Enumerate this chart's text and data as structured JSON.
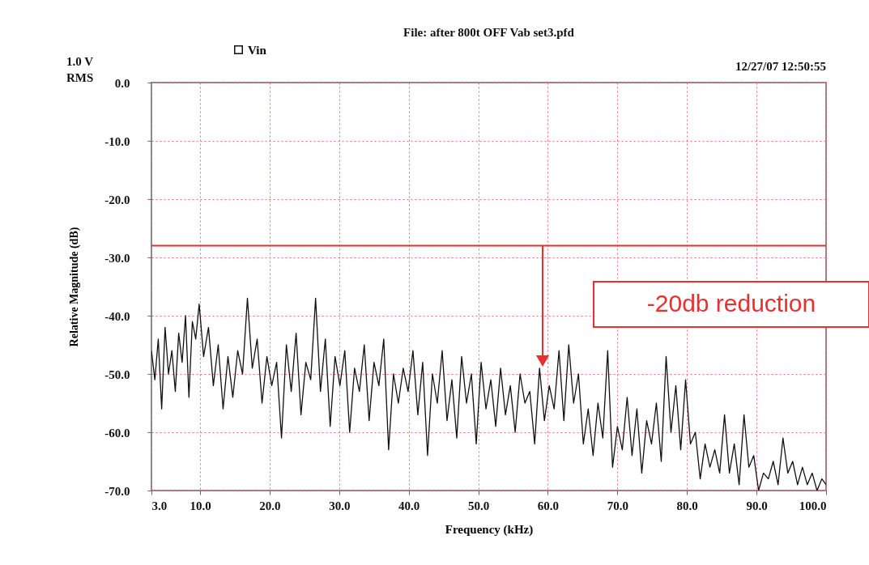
{
  "chart_data": {
    "type": "line",
    "title": "File: after 800t OFF Vab set3.pfd",
    "xlabel": "Frequency (kHz)",
    "ylabel": "Relative Magnitude (dB)",
    "xlim": [
      3,
      100
    ],
    "xticks": [
      {
        "value": 3,
        "label": "3.0"
      },
      {
        "value": 10,
        "label": "10.0"
      },
      {
        "value": 20,
        "label": "20.0"
      },
      {
        "value": 30,
        "label": "30.0"
      },
      {
        "value": 40,
        "label": "40.0"
      },
      {
        "value": 50,
        "label": "50.0"
      },
      {
        "value": 60,
        "label": "60.0"
      },
      {
        "value": 70,
        "label": "70.0"
      },
      {
        "value": 80,
        "label": "80.0"
      },
      {
        "value": 90,
        "label": "90.0"
      },
      {
        "value": 100,
        "label": "100.0"
      }
    ],
    "ylim": [
      -70,
      0
    ],
    "yticks": [
      {
        "value": 0,
        "label": "0.0"
      },
      {
        "value": -10,
        "label": "-10.0"
      },
      {
        "value": -20,
        "label": "-20.0"
      },
      {
        "value": -30,
        "label": "-30.0"
      },
      {
        "value": -40,
        "label": "-40.0"
      },
      {
        "value": -50,
        "label": "-50.0"
      },
      {
        "value": -60,
        "label": "-60.0"
      },
      {
        "value": -70,
        "label": "-70.0"
      }
    ],
    "grid": true,
    "legend": "top left",
    "line_style": "solid",
    "x": [
      3,
      3.49,
      3.98,
      4.47,
      4.96,
      5.45,
      5.94,
      6.43,
      6.92,
      7.41,
      7.9,
      8.39,
      8.88,
      9.37,
      9.86,
      10.5,
      11.2,
      11.9,
      12.6,
      13.3,
      14,
      14.7,
      15.4,
      16.1,
      16.8,
      17.5,
      18.2,
      18.9,
      19.6,
      20.3,
      21,
      21.7,
      22.4,
      23.1,
      23.8,
      24.5,
      25.2,
      25.9,
      26.6,
      27.3,
      28,
      28.7,
      29.4,
      30.1,
      30.8,
      31.5,
      32.2,
      32.9,
      33.6,
      34.3,
      35,
      35.7,
      36.4,
      37.1,
      37.8,
      38.5,
      39.2,
      39.9,
      40.6,
      41.3,
      42,
      42.7,
      43.4,
      44.1,
      44.8,
      45.5,
      46.2,
      46.9,
      47.6,
      48.3,
      49,
      49.7,
      50.4,
      51.1,
      51.8,
      52.5,
      53.2,
      53.9,
      54.6,
      55.3,
      56,
      56.7,
      57.4,
      58.1,
      58.8,
      59.5,
      60.2,
      60.9,
      61.6,
      62.3,
      63,
      63.7,
      64.4,
      65.1,
      65.8,
      66.5,
      67.2,
      67.9,
      68.6,
      69.3,
      70,
      70.7,
      71.4,
      72.1,
      72.8,
      73.5,
      74.2,
      74.9,
      75.6,
      76.3,
      77,
      77.7,
      78.4,
      79.1,
      79.8,
      80.5,
      81.2,
      81.9,
      82.6,
      83.3,
      84,
      84.7,
      85.4,
      86.1,
      86.8,
      87.5,
      88.2,
      88.9,
      89.6,
      90.3,
      91,
      91.7,
      92.4,
      93.1,
      93.8,
      94.5,
      95.2,
      95.9,
      96.6,
      97.3,
      98,
      98.7,
      99.4,
      100
    ],
    "series": [
      {
        "name": "Vin",
        "color": "#111111",
        "values": [
          -46,
          -51,
          -44,
          -56,
          -42,
          -50,
          -46,
          -53,
          -43,
          -48,
          -40,
          -54,
          -41,
          -44,
          -38,
          -47,
          -42,
          -52,
          -45,
          -56,
          -47,
          -54,
          -46,
          -50,
          -37,
          -49,
          -44,
          -55,
          -47,
          -52,
          -48,
          -61,
          -45,
          -53,
          -43,
          -57,
          -48,
          -51,
          -37,
          -53,
          -44,
          -59,
          -47,
          -52,
          -46,
          -60,
          -49,
          -53,
          -45,
          -58,
          -48,
          -52,
          -44,
          -63,
          -50,
          -55,
          -49,
          -53,
          -46,
          -57,
          -48,
          -64,
          -50,
          -55,
          -46,
          -58,
          -51,
          -61,
          -47,
          -55,
          -50,
          -62,
          -48,
          -56,
          -51,
          -59,
          -49,
          -57,
          -52,
          -60,
          -50,
          -55,
          -53,
          -62,
          -49,
          -58,
          -52,
          -56,
          -46,
          -58,
          -45,
          -55,
          -50,
          -62,
          -56,
          -64,
          -55,
          -61,
          -46,
          -66,
          -59,
          -63,
          -54,
          -64,
          -56,
          -67,
          -58,
          -62,
          -55,
          -65,
          -47,
          -60,
          -52,
          -63,
          -51,
          -62,
          -60,
          -68,
          -62,
          -66,
          -63,
          -67,
          -57,
          -67,
          -62,
          -69,
          -57,
          -66,
          -64,
          -70,
          -67,
          -68,
          -65,
          -69,
          -61,
          -67,
          -65,
          -69,
          -66,
          -69,
          -67,
          -70,
          -68,
          -69
        ]
      }
    ],
    "ref_lines": [
      {
        "axis": "y",
        "value": -28,
        "color": "#e8312f"
      }
    ],
    "annotations": [
      "1.0 V\nRMS",
      "12/27/07 12:50:55",
      "-20db reduction"
    ]
  }
}
